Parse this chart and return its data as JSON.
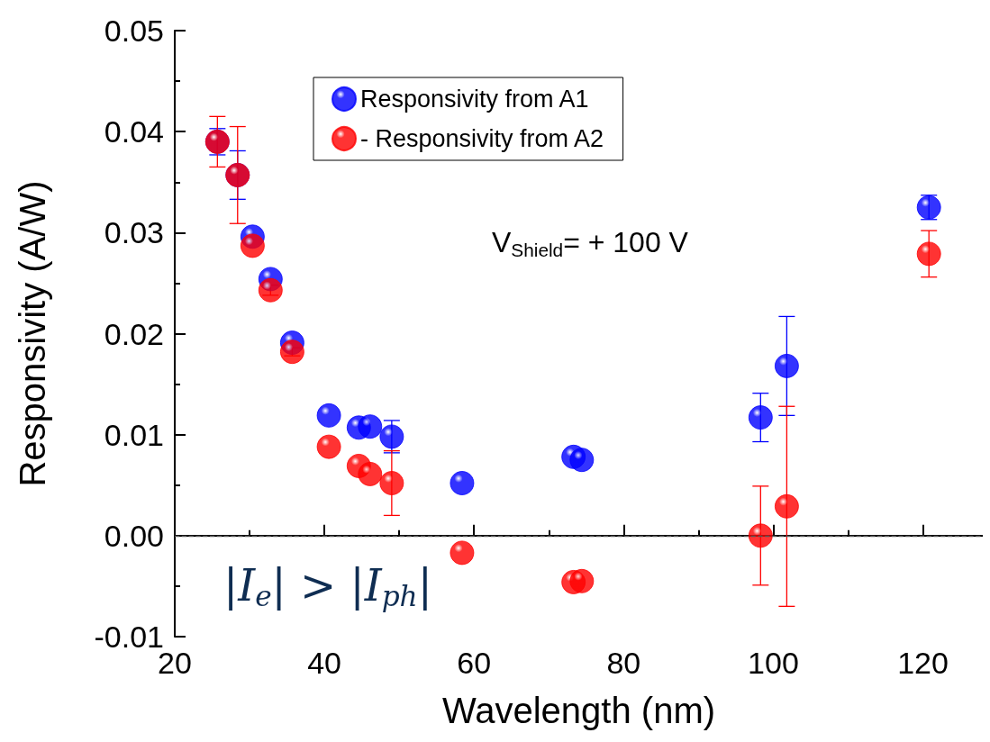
{
  "chart_data": {
    "type": "scatter",
    "xlabel": "Wavelength (nm)",
    "ylabel": "Responsivity (A/W)",
    "xlim": [
      20,
      128
    ],
    "xticks": [
      20,
      40,
      60,
      80,
      100,
      120
    ],
    "ylim": [
      -0.01,
      0.05
    ],
    "yticks": [
      {
        "value": -0.01,
        "label": "-0.01"
      },
      {
        "value": 0,
        "label": "0.00"
      },
      {
        "value": 0.01,
        "label": "0.01"
      },
      {
        "value": 0.02,
        "label": "0.02"
      },
      {
        "value": 0.03,
        "label": "0.03"
      },
      {
        "value": 0.04,
        "label": "0.04"
      },
      {
        "value": 0.05,
        "label": "0.05"
      }
    ],
    "x": [
      25.7,
      28.4,
      30.4,
      32.8,
      35.7,
      40.6,
      44.6,
      46.1,
      49.0,
      58.4,
      73.3,
      74.4,
      98.3,
      101.8,
      120.8
    ],
    "series": [
      {
        "name": "Responsivity from A1",
        "color": "#0000ff",
        "values": [
          0.039,
          0.0357,
          0.0296,
          0.0254,
          0.0191,
          0.0119,
          0.0107,
          0.0108,
          0.0098,
          0.0052,
          0.0078,
          0.0075,
          0.0117,
          0.0168,
          0.0325
        ],
        "errors": [
          0.0013,
          0.0024,
          null,
          null,
          null,
          null,
          null,
          null,
          0.0016,
          null,
          null,
          null,
          0.0024,
          0.0049,
          0.0012
        ]
      },
      {
        "name": "- Responsivity from A2",
        "color": "#ff0000",
        "values": [
          0.039,
          0.0357,
          0.0287,
          0.0243,
          0.0182,
          0.0088,
          0.0069,
          0.0061,
          0.0052,
          -0.0017,
          -0.0046,
          -0.0045,
          0.0,
          0.0029,
          0.0279
        ],
        "errors": [
          0.0025,
          0.0048,
          null,
          0.0005,
          0.0004,
          null,
          null,
          null,
          0.0032,
          null,
          null,
          null,
          0.0049,
          0.0099,
          0.0023
        ]
      }
    ],
    "ref_lines": [
      {
        "axis": "y",
        "value": 0,
        "color": "#555555",
        "line_style": "dashed"
      }
    ],
    "annotations": [
      "V$_{Shield}$= + 100 V",
      "|I$_{e}$| > |I$_{ph}$|"
    ],
    "marker": "circle",
    "legend": "top",
    "grid": false
  }
}
